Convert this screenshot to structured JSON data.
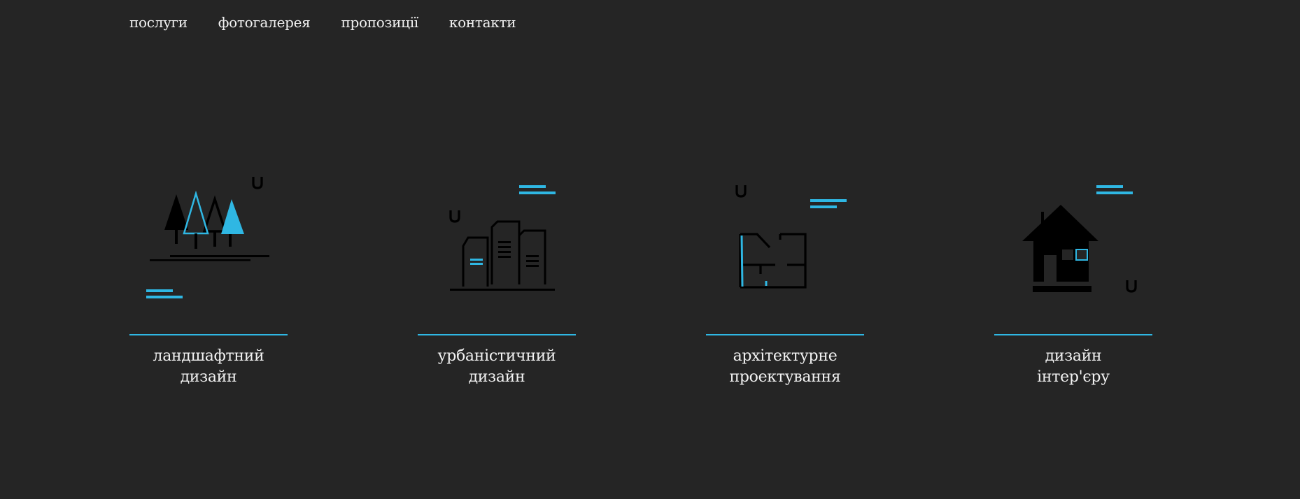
{
  "nav": {
    "items": [
      {
        "label": "послуги"
      },
      {
        "label": "фотогалерея"
      },
      {
        "label": "пропозиції"
      },
      {
        "label": "контакти"
      }
    ]
  },
  "services": [
    {
      "line1": "ландшафтний",
      "line2": "дизайн",
      "icon": "trees-icon"
    },
    {
      "line1": "урбаністичний",
      "line2": "дизайн",
      "icon": "city-buildings-icon"
    },
    {
      "line1": "архітектурне",
      "line2": "проектування",
      "icon": "floor-plan-icon"
    },
    {
      "line1": "дизайн",
      "line2": "інтер'єру",
      "icon": "house-icon"
    }
  ],
  "colors": {
    "background": "#252525",
    "accent": "#2fb7e3",
    "text": "#f2f2f2",
    "icon": "#000000"
  }
}
